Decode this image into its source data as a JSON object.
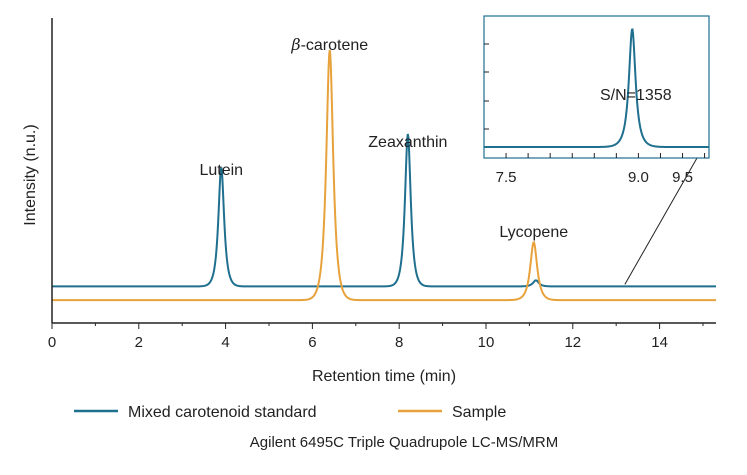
{
  "colors": {
    "standard": "#1f6f8f",
    "sample": "#e8a23c",
    "axis": "#222222"
  },
  "chart_data": {
    "type": "line",
    "xlabel": "Retention time (min)",
    "ylabel": "Intensity (n.u.)",
    "xlim": [
      0,
      15.3
    ],
    "ylim": [
      0,
      1.0
    ],
    "x_ticks": [
      "0",
      "2",
      "4",
      "6",
      "8",
      "10",
      "12",
      "14"
    ],
    "x_tick_values": [
      0,
      2,
      4,
      6,
      8,
      10,
      12,
      14
    ],
    "grid": false,
    "legend_position": "bottom",
    "series": [
      {
        "name": "Mixed carotenoid standard",
        "color": "#1f6f8f",
        "baseline": 0.12,
        "peaks": [
          {
            "rt": 3.9,
            "height": 0.39,
            "width": 0.1
          },
          {
            "rt": 8.2,
            "height": 0.5,
            "width": 0.1
          },
          {
            "rt": 11.15,
            "height": 0.02,
            "width": 0.1
          }
        ]
      },
      {
        "name": "Sample",
        "color": "#e8a23c",
        "baseline": 0.075,
        "peaks": [
          {
            "rt": 6.4,
            "height": 0.82,
            "width": 0.12
          },
          {
            "rt": 11.1,
            "height": 0.19,
            "width": 0.12
          }
        ]
      }
    ],
    "peak_labels": [
      {
        "text": "Lutein",
        "x": 3.9
      },
      {
        "text": "-carotene",
        "prefix": "β",
        "x": 6.4
      },
      {
        "text": "Zeaxanthin",
        "x": 8.2
      },
      {
        "text": "Lycopene",
        "x": 11.1
      }
    ],
    "inset": {
      "xlim": [
        7.25,
        9.8
      ],
      "x_ticks": [
        "7.5",
        "9.0",
        "9.5"
      ],
      "x_tick_values": [
        7.5,
        9.0,
        9.5
      ],
      "peak_rt": 8.93,
      "annotation": "S/N=1358",
      "pointer_target_rt": 13.2
    },
    "footer": "Agilent 6495C Triple Quadrupole LC-MS/MRM"
  }
}
